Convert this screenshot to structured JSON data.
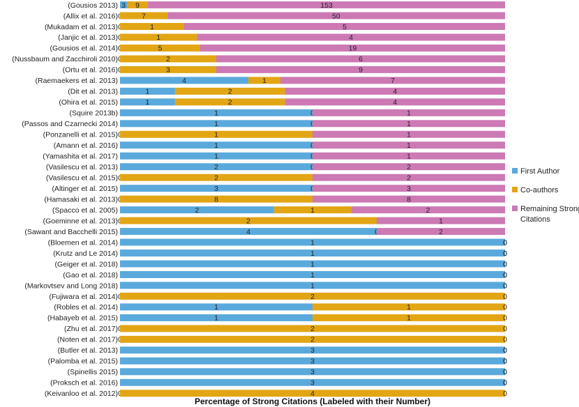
{
  "chart_data": {
    "type": "bar",
    "orientation": "horizontal",
    "stacked": true,
    "normalized": true,
    "xlabel": "Percentage of Strong Citations (Labeled with their Number)",
    "categories": [
      "(Gousios 2013)",
      "(Allix et al. 2016)",
      "(Mukadam et al. 2013)",
      "(Janjic et al. 2013)",
      "(Gousios et al. 2014)",
      "(Nussbaum and Zacchiroli 2010)",
      "(Ortu et al. 2016)",
      "(Raemaekers et al. 2013)",
      "(Dit et al. 2013)",
      "(Ohira et al. 2015)",
      "(Squire 2013b)",
      "(Passos and Czarnecki 2014)",
      "(Ponzanelli et al. 2015)",
      "(Amann et al. 2016)",
      "(Yamashita et al. 2017)",
      "(Vasilescu et al. 2013)",
      "(Vasilescu et al. 2015)",
      "(Altinger et al. 2015)",
      "(Hamasaki et al. 2013)",
      "(Spacco et al. 2005)",
      "(Goeminne et al. 2013)",
      "(Sawant and Bacchelli 2015)",
      "(Bloemen et al. 2014)",
      "(Krutz and Le 2014)",
      "(Geiger et al. 2018)",
      "(Gao et al. 2018)",
      "(Markovtsev and Long 2018)",
      "(Fujiwara et al. 2014)",
      "(Robles et al. 2014)",
      "(Habayeb et al. 2015)",
      "(Zhu et al. 2017)",
      "(Noten et al. 2017)",
      "(Butler et al. 2013)",
      "(Palomba et al. 2015)",
      "(Spinellis 2015)",
      "(Proksch et al. 2016)",
      "(Keivanloo et al. 2012)"
    ],
    "series": [
      {
        "name": "First Author",
        "color": "#5aa9dc",
        "values": [
          3,
          0,
          0,
          0,
          0,
          0,
          0,
          4,
          1,
          1,
          1,
          1,
          0,
          1,
          1,
          2,
          0,
          3,
          0,
          2,
          0,
          4,
          1,
          1,
          1,
          1,
          1,
          0,
          1,
          1,
          0,
          0,
          3,
          3,
          3,
          3,
          0
        ]
      },
      {
        "name": "Co-authors",
        "color": "#e2a514",
        "values": [
          9,
          7,
          1,
          1,
          5,
          2,
          3,
          1,
          2,
          2,
          0,
          0,
          1,
          0,
          0,
          0,
          2,
          0,
          8,
          1,
          2,
          0,
          0,
          0,
          0,
          0,
          0,
          2,
          1,
          1,
          2,
          2,
          0,
          0,
          0,
          0,
          4
        ]
      },
      {
        "name": "Remaining Strong Citations",
        "color": "#cc79b4",
        "values": [
          153,
          50,
          5,
          4,
          19,
          6,
          9,
          7,
          4,
          4,
          1,
          1,
          1,
          1,
          1,
          2,
          2,
          3,
          8,
          2,
          1,
          2,
          0,
          0,
          0,
          0,
          0,
          0,
          0,
          0,
          0,
          0,
          0,
          0,
          0,
          0,
          0
        ]
      }
    ],
    "legend": {
      "position": "right",
      "entries": [
        "First Author",
        "Co-authors",
        "Remaining Strong Citations"
      ]
    }
  }
}
